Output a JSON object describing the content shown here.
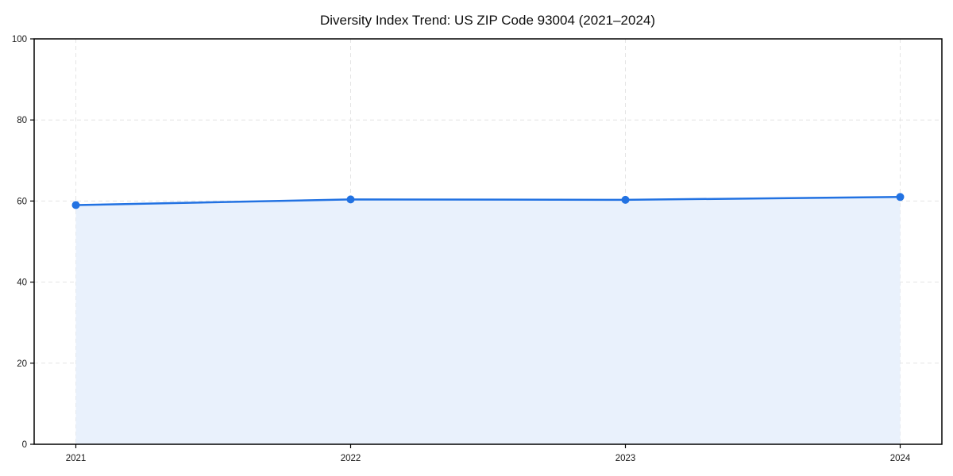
{
  "title": "Diversity Index Trend: US ZIP Code 93004 (2021–2024)",
  "colors": {
    "line": "#2272e2",
    "fill": "#e9f1fc",
    "axis": "#000000",
    "grid": "#e4e4e4",
    "tick_label": "#1a1a1a"
  },
  "chart_data": {
    "type": "area",
    "title": "Diversity Index Trend: US ZIP Code 93004 (2021–2024)",
    "x": [
      2021,
      2022,
      2023,
      2024
    ],
    "xticks": [
      "2021",
      "2022",
      "2023",
      "2024"
    ],
    "yticks": [
      0,
      20,
      40,
      60,
      80,
      100
    ],
    "ylim": [
      0,
      100
    ],
    "xlabel": "",
    "ylabel": "",
    "grid": true,
    "legend": "none",
    "series": [
      {
        "name": "Diversity Index",
        "values": [
          59.0,
          60.4,
          60.3,
          61.0
        ]
      }
    ]
  }
}
